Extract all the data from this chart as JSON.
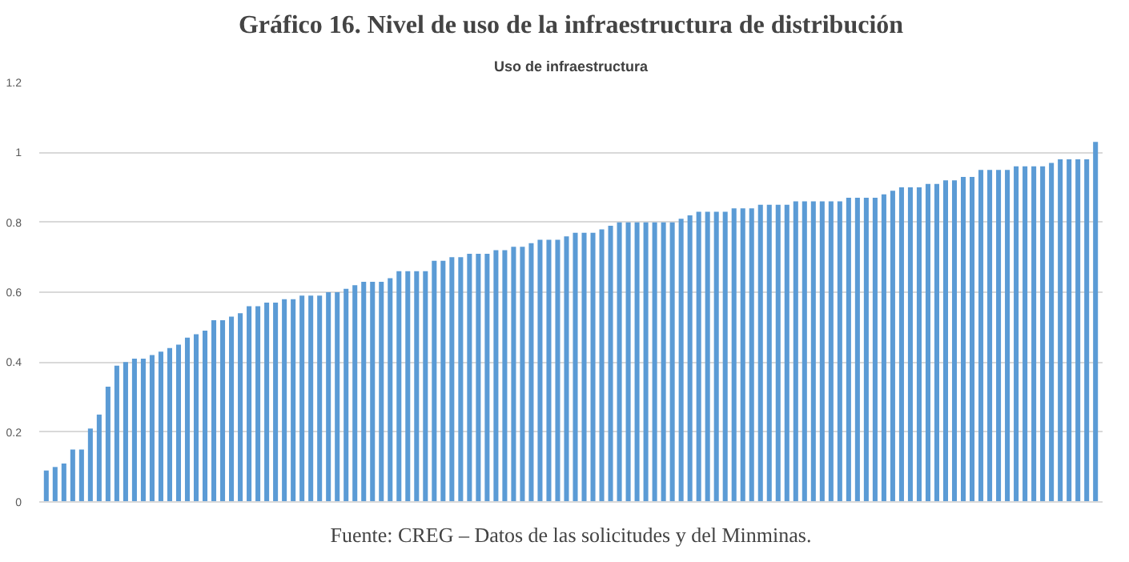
{
  "chart_data": {
    "type": "bar",
    "title": "Gráfico 16. Nivel de uso de la infraestructura de distribución",
    "subtitle": "Uso de infraestructura",
    "annotations": [
      "Fuente: CREG – Datos de las solicitudes y del Minminas."
    ],
    "categories": [
      null,
      null,
      null,
      null,
      null,
      null,
      null,
      null,
      null,
      null,
      null,
      null,
      null,
      null,
      null,
      null,
      null,
      null,
      null,
      null,
      null,
      null,
      null,
      null,
      null,
      null,
      null,
      null,
      null,
      null,
      null,
      null,
      null,
      null,
      null,
      null,
      null,
      null,
      null,
      null,
      null,
      null,
      null,
      null,
      null,
      null,
      null,
      null,
      null,
      null,
      null,
      null,
      null,
      null,
      null,
      null,
      null,
      null,
      null,
      null,
      null,
      null,
      null,
      null,
      null,
      null,
      null,
      null,
      null,
      null,
      null,
      null,
      null,
      null,
      null,
      null,
      null,
      null,
      null,
      null,
      null,
      null,
      null,
      null,
      null,
      null,
      null,
      null,
      null,
      null,
      null,
      null,
      null,
      null,
      null,
      null,
      null,
      null,
      null,
      null,
      null,
      null,
      null,
      null,
      null,
      null,
      null,
      null,
      null,
      null,
      null,
      null,
      null,
      null,
      null,
      null,
      null,
      null,
      null,
      null
    ],
    "values": [
      0.09,
      0.1,
      0.11,
      0.15,
      0.15,
      0.21,
      0.25,
      0.33,
      0.39,
      0.4,
      0.41,
      0.41,
      0.42,
      0.43,
      0.44,
      0.45,
      0.47,
      0.48,
      0.49,
      0.52,
      0.52,
      0.53,
      0.54,
      0.56,
      0.56,
      0.57,
      0.57,
      0.58,
      0.58,
      0.59,
      0.59,
      0.59,
      0.6,
      0.6,
      0.61,
      0.62,
      0.63,
      0.63,
      0.63,
      0.64,
      0.66,
      0.66,
      0.66,
      0.66,
      0.69,
      0.69,
      0.7,
      0.7,
      0.71,
      0.71,
      0.71,
      0.72,
      0.72,
      0.73,
      0.73,
      0.74,
      0.75,
      0.75,
      0.75,
      0.76,
      0.77,
      0.77,
      0.77,
      0.78,
      0.79,
      0.8,
      0.8,
      0.8,
      0.8,
      0.8,
      0.8,
      0.8,
      0.81,
      0.82,
      0.83,
      0.83,
      0.83,
      0.83,
      0.84,
      0.84,
      0.84,
      0.85,
      0.85,
      0.85,
      0.85,
      0.86,
      0.86,
      0.86,
      0.86,
      0.86,
      0.86,
      0.87,
      0.87,
      0.87,
      0.87,
      0.88,
      0.89,
      0.9,
      0.9,
      0.9,
      0.91,
      0.91,
      0.92,
      0.92,
      0.93,
      0.93,
      0.95,
      0.95,
      0.95,
      0.95,
      0.96,
      0.96,
      0.96,
      0.96,
      0.97,
      0.98,
      0.98,
      0.98,
      0.98,
      1.03
    ],
    "color": "#5b9bd5",
    "ylim": [
      0,
      1.2
    ],
    "yticks": [
      0,
      0.2,
      0.4,
      0.6,
      0.8,
      1,
      1.2
    ],
    "grid": "y",
    "tick_labels": "y"
  }
}
